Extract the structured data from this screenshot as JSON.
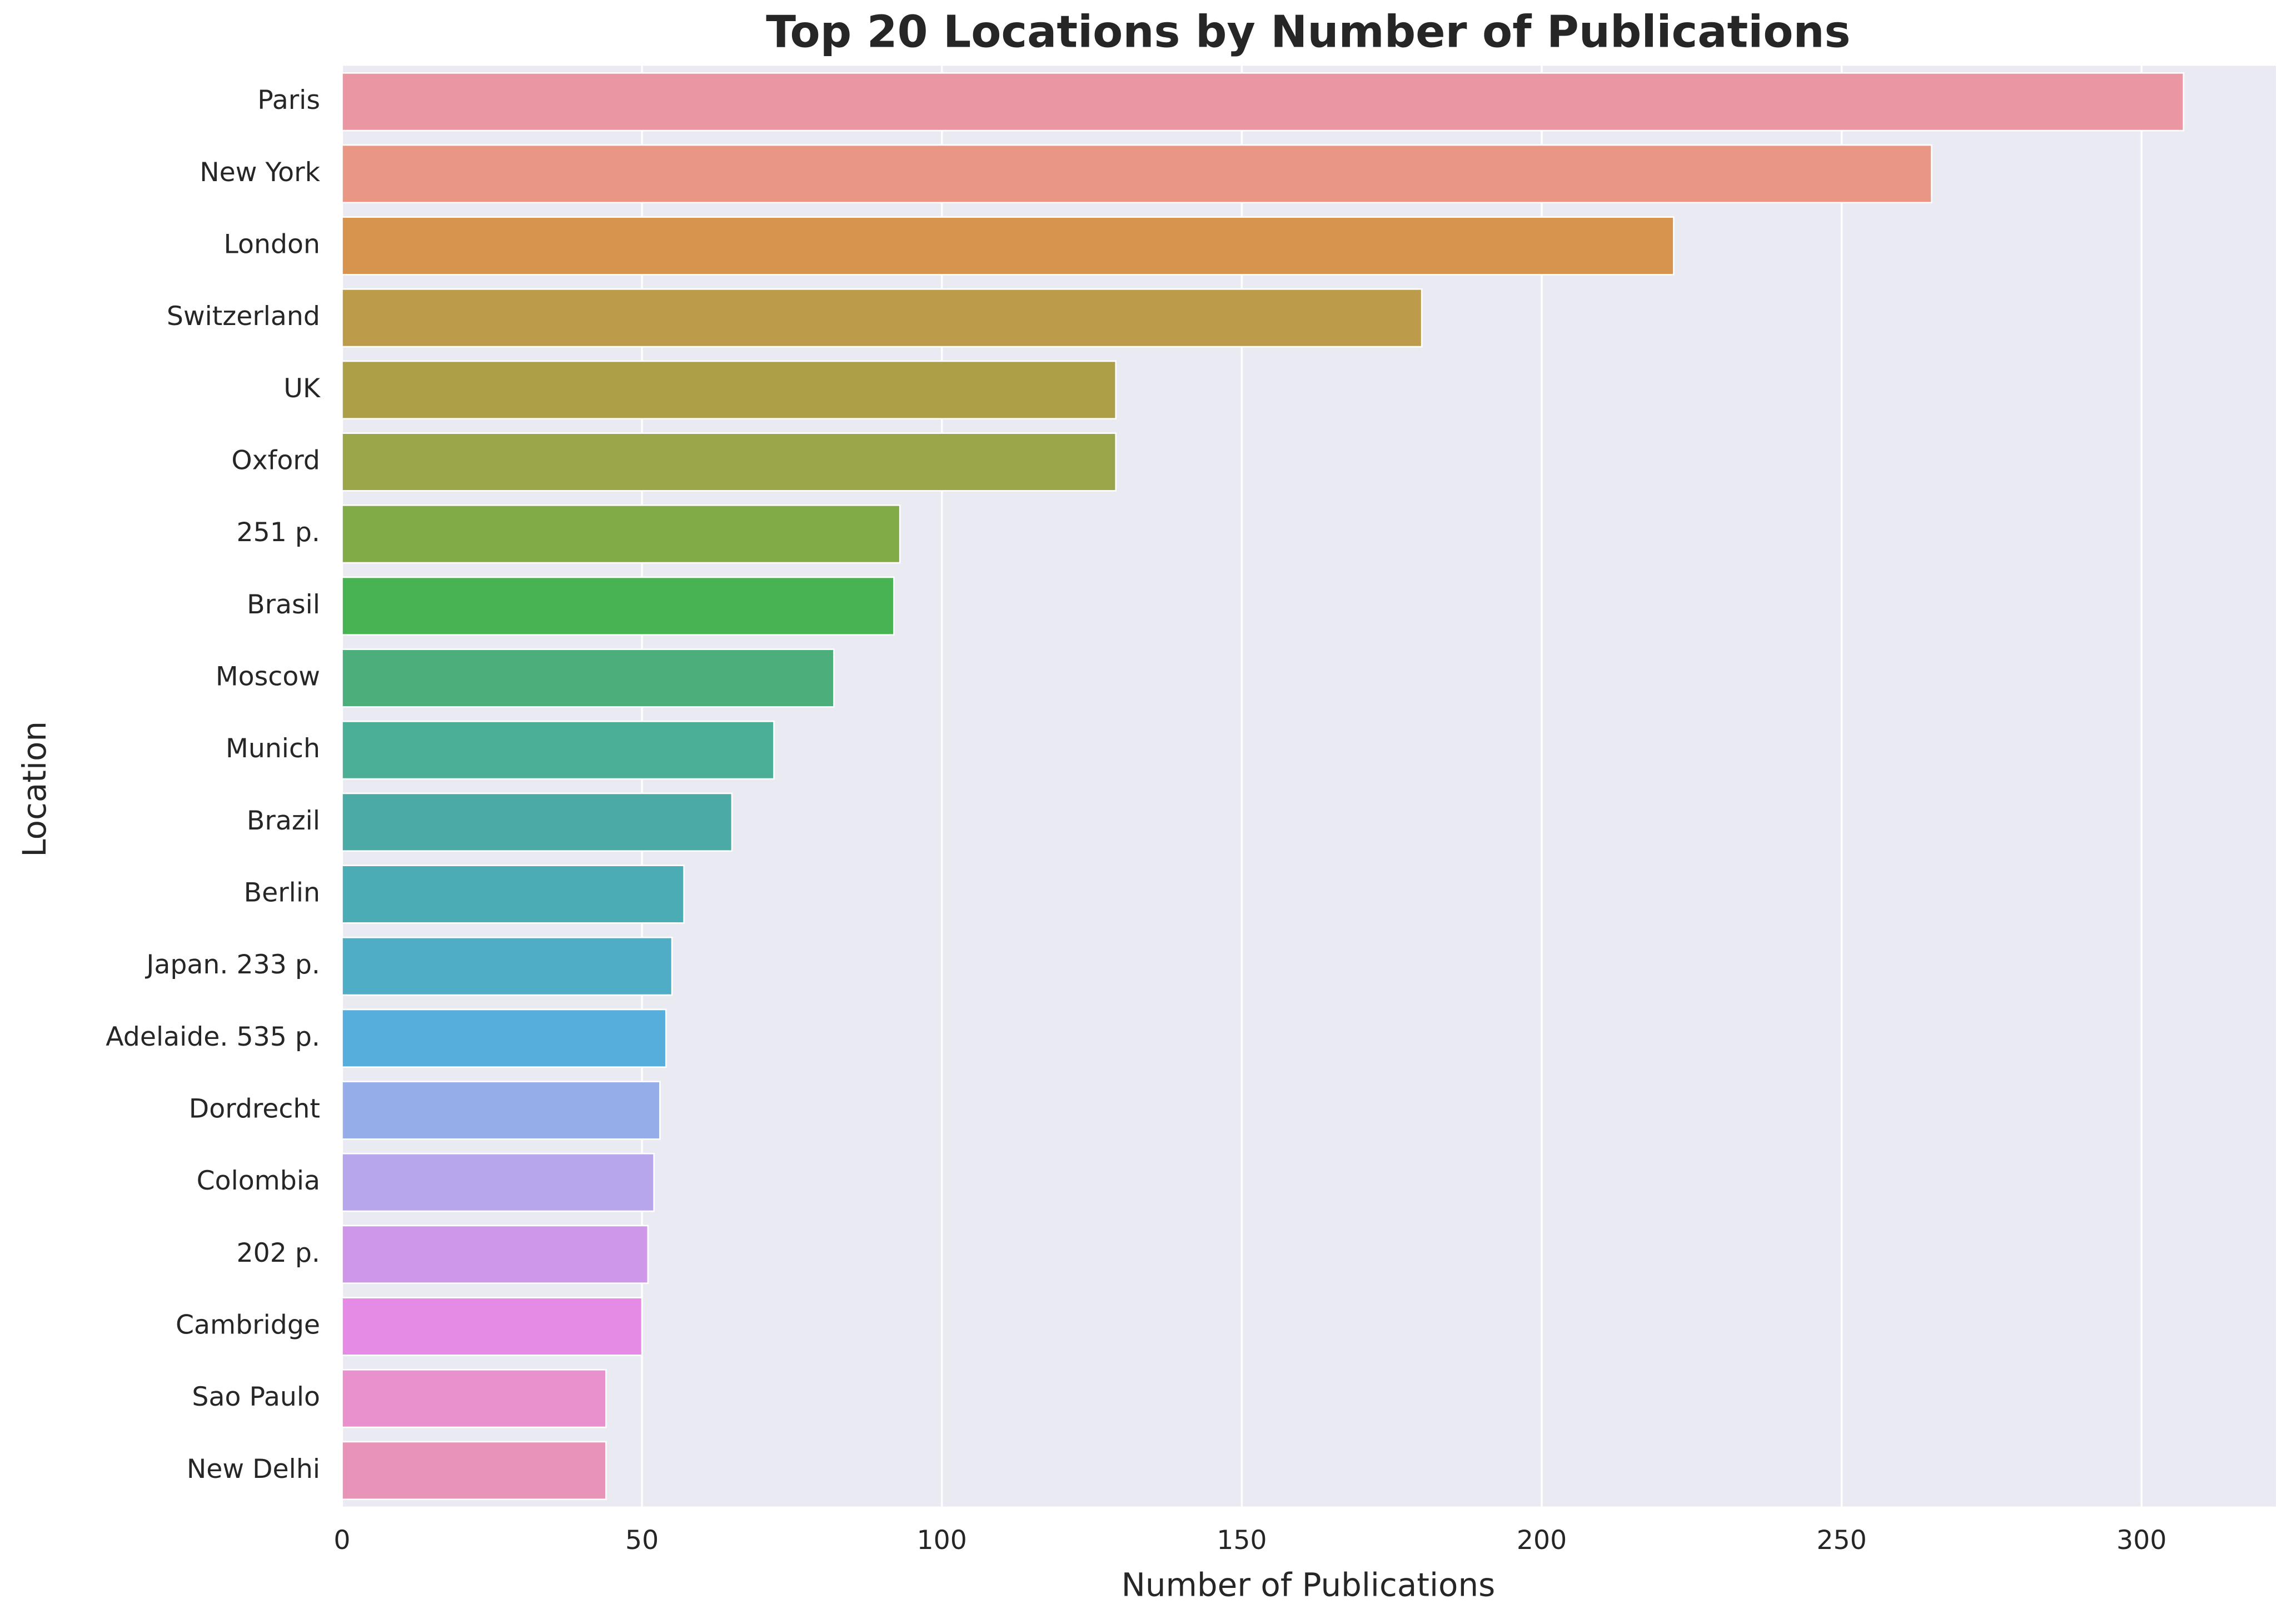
{
  "chart_data": {
    "type": "barh",
    "title": "Top 20 Locations by Number of Publications",
    "x_label": "Number of Publications",
    "y_label": "Location",
    "categories": [
      "Paris",
      "New York",
      "London",
      "Switzerland",
      "UK",
      "Oxford",
      "251 p.",
      "Brasil",
      "Moscow",
      "Munich",
      "Brazil",
      "Berlin",
      "Japan.  233 p.",
      "Adelaide.  535 p.",
      "Dordrecht",
      "Colombia",
      "202 p.",
      "Cambridge",
      "Sao Paulo",
      "New Delhi"
    ],
    "values": [
      307,
      265,
      222,
      180,
      129,
      129,
      93,
      92,
      82,
      72,
      65,
      57,
      55,
      54,
      53,
      52,
      51,
      50,
      44,
      44
    ],
    "colors": [
      "#eb97a3",
      "#e99784",
      "#d6944e",
      "#bc9b4b",
      "#ad9f48",
      "#9ba549",
      "#80ab47",
      "#48b352",
      "#4caf7b",
      "#4bae97",
      "#4caaa6",
      "#4cacb5",
      "#4fadc5",
      "#56aedd",
      "#95aeea",
      "#b7a6ec",
      "#cf97e8",
      "#e68be5",
      "#e991cc",
      "#e893b8"
    ],
    "xlim": [
      0,
      322.4
    ],
    "xticks": [
      0,
      50,
      100,
      150,
      200,
      250,
      300
    ],
    "grid": true
  }
}
